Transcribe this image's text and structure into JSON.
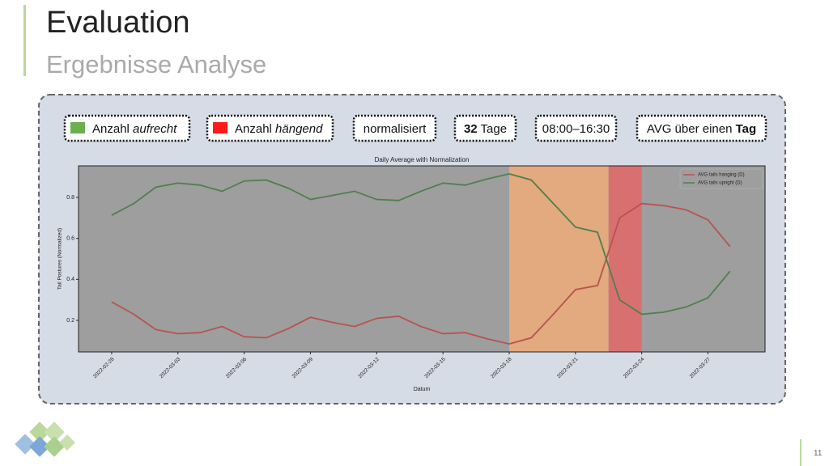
{
  "header": {
    "title": "Evaluation",
    "subtitle": "Ergebnisse Analyse"
  },
  "filters": [
    {
      "color": "#6ab04c",
      "parts": [
        {
          "text": "Anzahl ",
          "style": "normal"
        },
        {
          "text": "aufrecht",
          "style": "italic"
        }
      ]
    },
    {
      "color": "#ff1a1a",
      "parts": [
        {
          "text": "Anzahl ",
          "style": "normal"
        },
        {
          "text": "hängend",
          "style": "italic"
        }
      ]
    },
    {
      "parts": [
        {
          "text": "normalisiert",
          "style": "normal"
        }
      ]
    },
    {
      "parts": [
        {
          "text": "32",
          "style": "bold"
        },
        {
          "text": " Tage",
          "style": "normal"
        }
      ]
    },
    {
      "parts": [
        {
          "text": "08:00–16:30",
          "style": "normal"
        }
      ]
    },
    {
      "parts": [
        {
          "text": "AVG über einen ",
          "style": "normal"
        },
        {
          "text": "Tag",
          "style": "bold"
        }
      ]
    }
  ],
  "page_number": "11",
  "chart_data": {
    "type": "line",
    "title": "Daily Average with Normalization",
    "x_label": "Datum",
    "y_label": "Tail Postures (Normalized)",
    "x": [
      "2022-02-28",
      "2022-03-01",
      "2022-03-02",
      "2022-03-03",
      "2022-03-04",
      "2022-03-05",
      "2022-03-06",
      "2022-03-07",
      "2022-03-08",
      "2022-03-09",
      "2022-03-10",
      "2022-03-11",
      "2022-03-12",
      "2022-03-13",
      "2022-03-14",
      "2022-03-15",
      "2022-03-16",
      "2022-03-17",
      "2022-03-18",
      "2022-03-19",
      "2022-03-20",
      "2022-03-21",
      "2022-03-22",
      "2022-03-23",
      "2022-03-24",
      "2022-03-25",
      "2022-03-26",
      "2022-03-27",
      "2022-03-28"
    ],
    "series": [
      {
        "name": "AVG tails hanging (D)",
        "color": "#b5544f",
        "values": [
          0.29,
          0.23,
          0.155,
          0.135,
          0.14,
          0.17,
          0.12,
          0.115,
          0.16,
          0.215,
          0.19,
          0.17,
          0.21,
          0.22,
          0.17,
          0.135,
          0.14,
          0.11,
          0.085,
          0.115,
          0.23,
          0.35,
          0.37,
          0.7,
          0.77,
          0.76,
          0.74,
          0.69,
          0.56
        ]
      },
      {
        "name": "AVG tails upright (D)",
        "color": "#4f7f4f",
        "values": [
          0.713,
          0.77,
          0.85,
          0.87,
          0.86,
          0.83,
          0.88,
          0.885,
          0.845,
          0.79,
          0.81,
          0.83,
          0.79,
          0.785,
          0.83,
          0.87,
          0.86,
          0.89,
          0.915,
          0.885,
          0.77,
          0.655,
          0.63,
          0.3,
          0.23,
          0.24,
          0.265,
          0.31,
          0.44
        ]
      }
    ],
    "spans": [
      {
        "start": "2022-03-18T00:00",
        "end": "2022-03-22T12:00",
        "color": "#e3a97f"
      },
      {
        "start": "2022-03-22T12:00",
        "end": "2022-03-24T00:00",
        "color": "#d97070"
      }
    ],
    "background": "#9e9e9e",
    "xlim": [
      "2022-02-26T12:00",
      "2022-03-29T14:00"
    ],
    "xticks": [
      "2022-02-28",
      "2022-03-03",
      "2022-03-06",
      "2022-03-09",
      "2022-03-12",
      "2022-03-15",
      "2022-03-18",
      "2022-03-21",
      "2022-03-24",
      "2022-03-27"
    ],
    "ylim": [
      0.046,
      0.954
    ],
    "yticks": [
      0.2,
      0.4,
      0.6,
      0.8
    ],
    "legend": "upper right"
  }
}
